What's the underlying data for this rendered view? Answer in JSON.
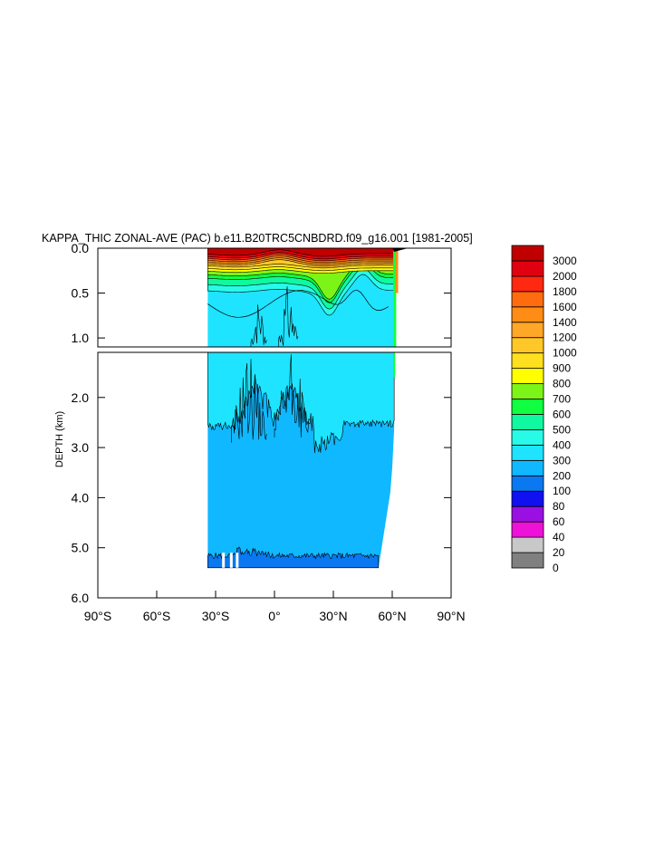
{
  "chart_data": {
    "type": "heatmap",
    "title": "KAPPA_THIC ZONAL-AVE (PAC) b.e11.B20TRC5CNBDRD.f09_g16.001 [1981-2005]",
    "ylabel": "DEPTH (km)",
    "xlabel": "",
    "x_axis": {
      "range": [
        -90,
        90
      ],
      "ticks": [
        -90,
        -60,
        -30,
        0,
        30,
        60,
        90
      ],
      "tick_labels": [
        "90°S",
        "60°S",
        "30°S",
        "0°",
        "30°N",
        "60°N",
        "90°N"
      ]
    },
    "upper_panel": {
      "ylim": [
        0.0,
        1.1
      ],
      "ticks": [
        0.0,
        0.5,
        1.0
      ],
      "tick_labels": [
        "0.0",
        "0.5",
        "1.0"
      ]
    },
    "lower_panel": {
      "ylim": [
        1.1,
        6.0
      ],
      "ticks": [
        2.0,
        3.0,
        4.0,
        5.0,
        6.0
      ],
      "tick_labels": [
        "2.0",
        "3.0",
        "4.0",
        "5.0",
        "6.0"
      ]
    },
    "data_extent": {
      "lat_min": -34,
      "lat_max": 68,
      "max_depth_km": 5.4
    },
    "colorbar": {
      "levels": [
        "0",
        "20",
        "40",
        "60",
        "80",
        "100",
        "200",
        "300",
        "400",
        "500",
        "600",
        "700",
        "800",
        "900",
        "1000",
        "1200",
        "1400",
        "1600",
        "1800",
        "2000",
        "3000"
      ],
      "colors": [
        "#808080",
        "#c8c8c8",
        "#ee11d8",
        "#9a10e2",
        "#1010f0",
        "#0a78f0",
        "#10b8ff",
        "#1ee4ff",
        "#28fae8",
        "#10f8a0",
        "#10ff40",
        "#7cf418",
        "#ffff00",
        "#ffe020",
        "#ffc828",
        "#ffa828",
        "#ff8c14",
        "#ff6c10",
        "#ff2810",
        "#e00010",
        "#c00000"
      ]
    }
  }
}
